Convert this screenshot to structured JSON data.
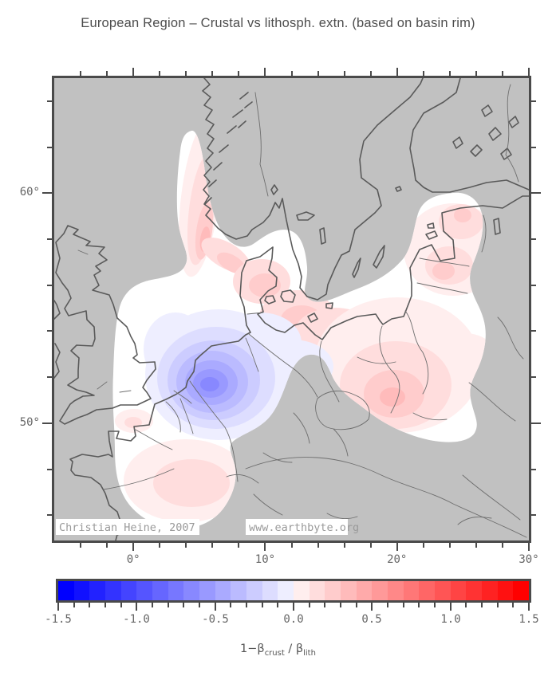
{
  "title": "European Region – Crustal vs lithosph. extn. (based on basin rim)",
  "map": {
    "extent": {
      "lon_min": -6,
      "lon_max": 30,
      "lat_min": 44.9,
      "lat_max": 65
    },
    "x_axis": {
      "major_ticks": [
        {
          "label": "0°",
          "lon": 0
        },
        {
          "label": "10°",
          "lon": 10
        },
        {
          "label": "20°",
          "lon": 20
        },
        {
          "label": "30°",
          "lon": 30
        }
      ],
      "minor_tick_step_deg": 2
    },
    "y_axis": {
      "major_ticks": [
        {
          "label": "60°",
          "lat": 60
        },
        {
          "label": "50°",
          "lat": 50
        }
      ],
      "minor_tick_step_deg": 2
    },
    "watermark": {
      "credit": "Christian Heine, 2007",
      "url": "www.earthbyte.org"
    }
  },
  "colorbar": {
    "min": -1.5,
    "max": 1.5,
    "step": 0.1,
    "major_tick_interval": 0.5,
    "tick_labels": [
      "-1.5",
      "-1.0",
      "-0.5",
      "0.0",
      "0.5",
      "1.0",
      "1.5"
    ],
    "label_parts": {
      "prefix": "1−β",
      "sub1": "crust",
      "mid": " / β",
      "sub2": "lith"
    },
    "color_negative": "#0000ff",
    "color_zero": "#ffffff",
    "color_positive": "#ff0000"
  },
  "chart_data": {
    "type": "map",
    "title": "European Region – Crustal vs lithosph. extn. (based on basin rim)",
    "projection_extent": {
      "lon": [
        -6,
        30
      ],
      "lat": [
        45,
        65
      ]
    },
    "colorbar": {
      "label": "1−βcrust / βlith",
      "range": [
        -1.5,
        1.5
      ],
      "step": 0.1,
      "palette": "blue-white-red (GMT polar)"
    },
    "field_readings": [
      {
        "area": "southern North Sea / Netherlands (blue minimum)",
        "approx_value": -0.7
      },
      {
        "area": "offshore SW Norway coast band",
        "approx_value": 0.4
      },
      {
        "area": "Skagerrak / Kattegat / Denmark",
        "approx_value": 0.25
      },
      {
        "area": "NE Germany / Baltic south coast",
        "approx_value": 0.25
      },
      {
        "area": "central-south Poland (red maximum east)",
        "approx_value": 0.3
      },
      {
        "area": "Baltic states / Gulf of Riga",
        "approx_value": 0.2
      },
      {
        "area": "Paris Basin",
        "approx_value": 0.15
      },
      {
        "area": "rest of data region",
        "approx_value": 0.0
      },
      {
        "area": "outside basin-rim data region",
        "approx_value": null
      }
    ]
  },
  "colors": {
    "background": "#ffffff",
    "map_gray": "#c1c1c1",
    "coastline": "#5a5a5a",
    "thin_lines": "#6e6e6e",
    "frame": "#4a4a4a",
    "annotation": "#666666",
    "title": "#4d4d4d",
    "watermark_text": "#9a9a9a"
  }
}
